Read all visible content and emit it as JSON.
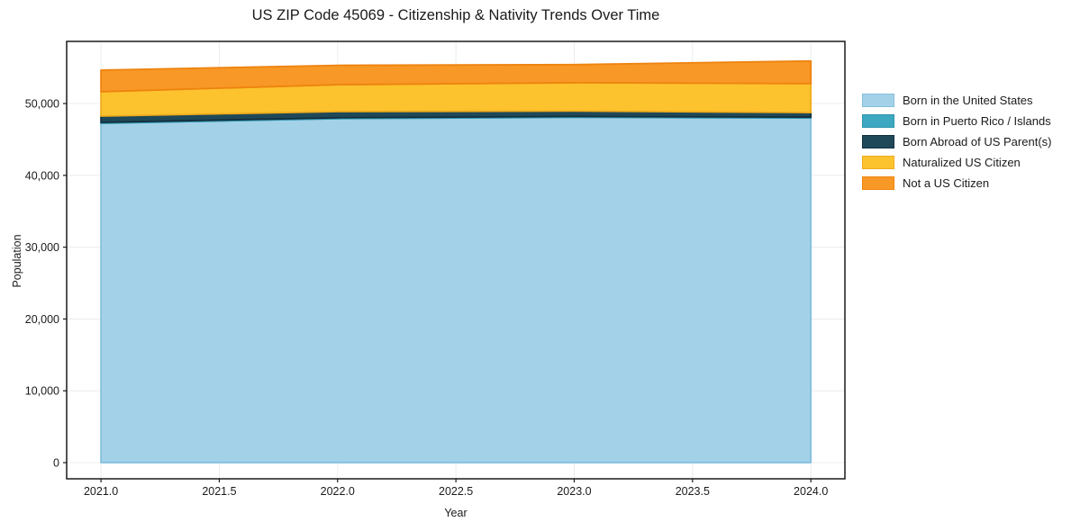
{
  "chart_data": {
    "type": "area",
    "stacked": true,
    "title": "US ZIP Code 45069 - Citizenship & Nativity Trends Over Time",
    "xlabel": "Year",
    "ylabel": "Population",
    "x": [
      2021,
      2022,
      2023,
      2024
    ],
    "series": [
      {
        "name": "Born in the United States",
        "color": "#A3D1E8",
        "edge": "#85BFDD",
        "values": [
          47250,
          47900,
          48080,
          47990
        ]
      },
      {
        "name": "Born in Puerto Rico / Islands",
        "color": "#3EA8C0",
        "edge": "#2D96AE",
        "values": [
          120,
          120,
          120,
          120
        ]
      },
      {
        "name": "Born Abroad of US Parent(s)",
        "color": "#1F4959",
        "edge": "#14303F",
        "values": [
          880,
          850,
          750,
          630
        ]
      },
      {
        "name": "Naturalized US Citizen",
        "color": "#FCC32E",
        "edge": "#EFAC1C",
        "values": [
          3400,
          3750,
          3950,
          4030
        ]
      },
      {
        "name": "Not a US Citizen",
        "color": "#F89826",
        "edge": "#EE830F",
        "values": [
          3000,
          2700,
          2520,
          3150
        ]
      }
    ],
    "xticks": [
      2021.0,
      2021.5,
      2022.0,
      2022.5,
      2023.0,
      2023.5,
      2024.0
    ],
    "xtick_labels": [
      "2021.0",
      "2021.5",
      "2022.0",
      "2022.5",
      "2023.0",
      "2023.5",
      "2024.0"
    ],
    "yticks": [
      0,
      10000,
      20000,
      30000,
      40000,
      50000
    ],
    "ytick_labels": [
      "0",
      "10,000",
      "20,000",
      "30,000",
      "40,000",
      "50,000"
    ],
    "xlim": [
      2020.855,
      2024.144
    ],
    "ylim": [
      -2250,
      58650
    ],
    "grid": true,
    "grid_color": "#ECECEC",
    "spine_color": "#1a1a1a",
    "tick_label_color": "#1a1a1a",
    "legend_position": "right-outside"
  }
}
